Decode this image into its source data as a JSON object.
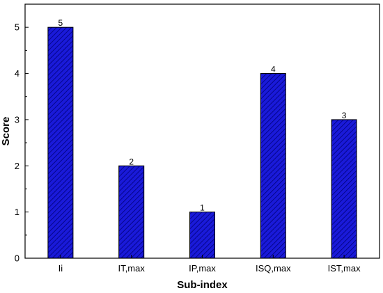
{
  "chart_data": {
    "type": "bar",
    "categories": [
      "Ii",
      "IT,max",
      "IP,max",
      "ISQ,max",
      "IST,max"
    ],
    "values": [
      5,
      2,
      1,
      4,
      3
    ],
    "data_labels": [
      "5",
      "2",
      "1",
      "4",
      "3"
    ],
    "xlabel": "Sub-index",
    "ylabel": "Score",
    "ylim": [
      0,
      5.5
    ],
    "yticks": [
      0,
      1,
      2,
      3,
      4,
      5
    ],
    "grid": false,
    "legend": "none",
    "bar_color": "#1a1ad9",
    "bar_pattern": "diagonal-hatch"
  }
}
